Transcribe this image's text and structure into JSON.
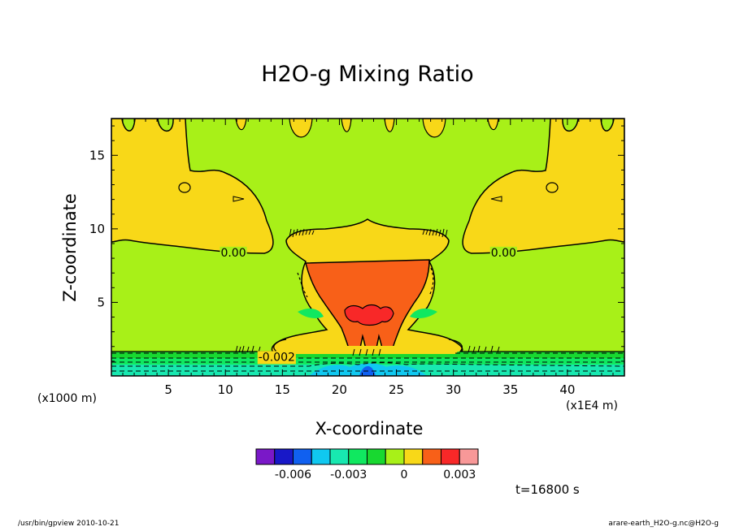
{
  "chart_data": {
    "type": "heatmap",
    "title": "H2O-g Mixing Ratio",
    "xlabel": "X-coordinate",
    "ylabel": "Z-coordinate",
    "x_unit": "(x1000 m)",
    "x_scale": "(x1E4 m)",
    "xlim": [
      0,
      45
    ],
    "ylim": [
      0,
      17.5
    ],
    "xticks": [
      5,
      10,
      15,
      20,
      25,
      30,
      35,
      40
    ],
    "yticks": [
      5,
      10,
      15
    ],
    "contour_labels": [
      {
        "x": 10.7,
        "y": 8.4,
        "text": "0.00"
      },
      {
        "x": 34.4,
        "y": 8.4,
        "text": "0.00"
      },
      {
        "x": 14.5,
        "y": 1.3,
        "text": "-0.002"
      }
    ],
    "colorbar": {
      "colors": [
        "#7a18c8",
        "#1818c8",
        "#1060f0",
        "#10c8f0",
        "#18e8b0",
        "#10e860",
        "#18d830",
        "#a8f018",
        "#f8d818",
        "#f86018",
        "#f82828",
        "#f89898"
      ],
      "tick_labels": [
        "-0.006",
        "-0.003",
        "0",
        "0.003"
      ]
    },
    "regions": [
      {
        "level": "0",
        "color": "#a8f018"
      },
      {
        "level": "0.0005",
        "color": "#f8d818"
      },
      {
        "level": "0.0015",
        "color": "#f86018"
      },
      {
        "level": "0.002",
        "color": "#f82828"
      },
      {
        "level": "-0.001",
        "color": "#18d830"
      },
      {
        "level": "-0.002",
        "color": "#10e860"
      },
      {
        "level": "-0.003",
        "color": "#18e8b0"
      },
      {
        "level": "-0.004",
        "color": "#10c8f0"
      },
      {
        "level": "-0.005",
        "color": "#1060f0"
      }
    ],
    "time_label": "t=16800 s"
  },
  "footer": {
    "left": "/usr/bin/gpview  2010-10-21",
    "right": "arare-earth_H2O-g.nc@H2O-g"
  }
}
